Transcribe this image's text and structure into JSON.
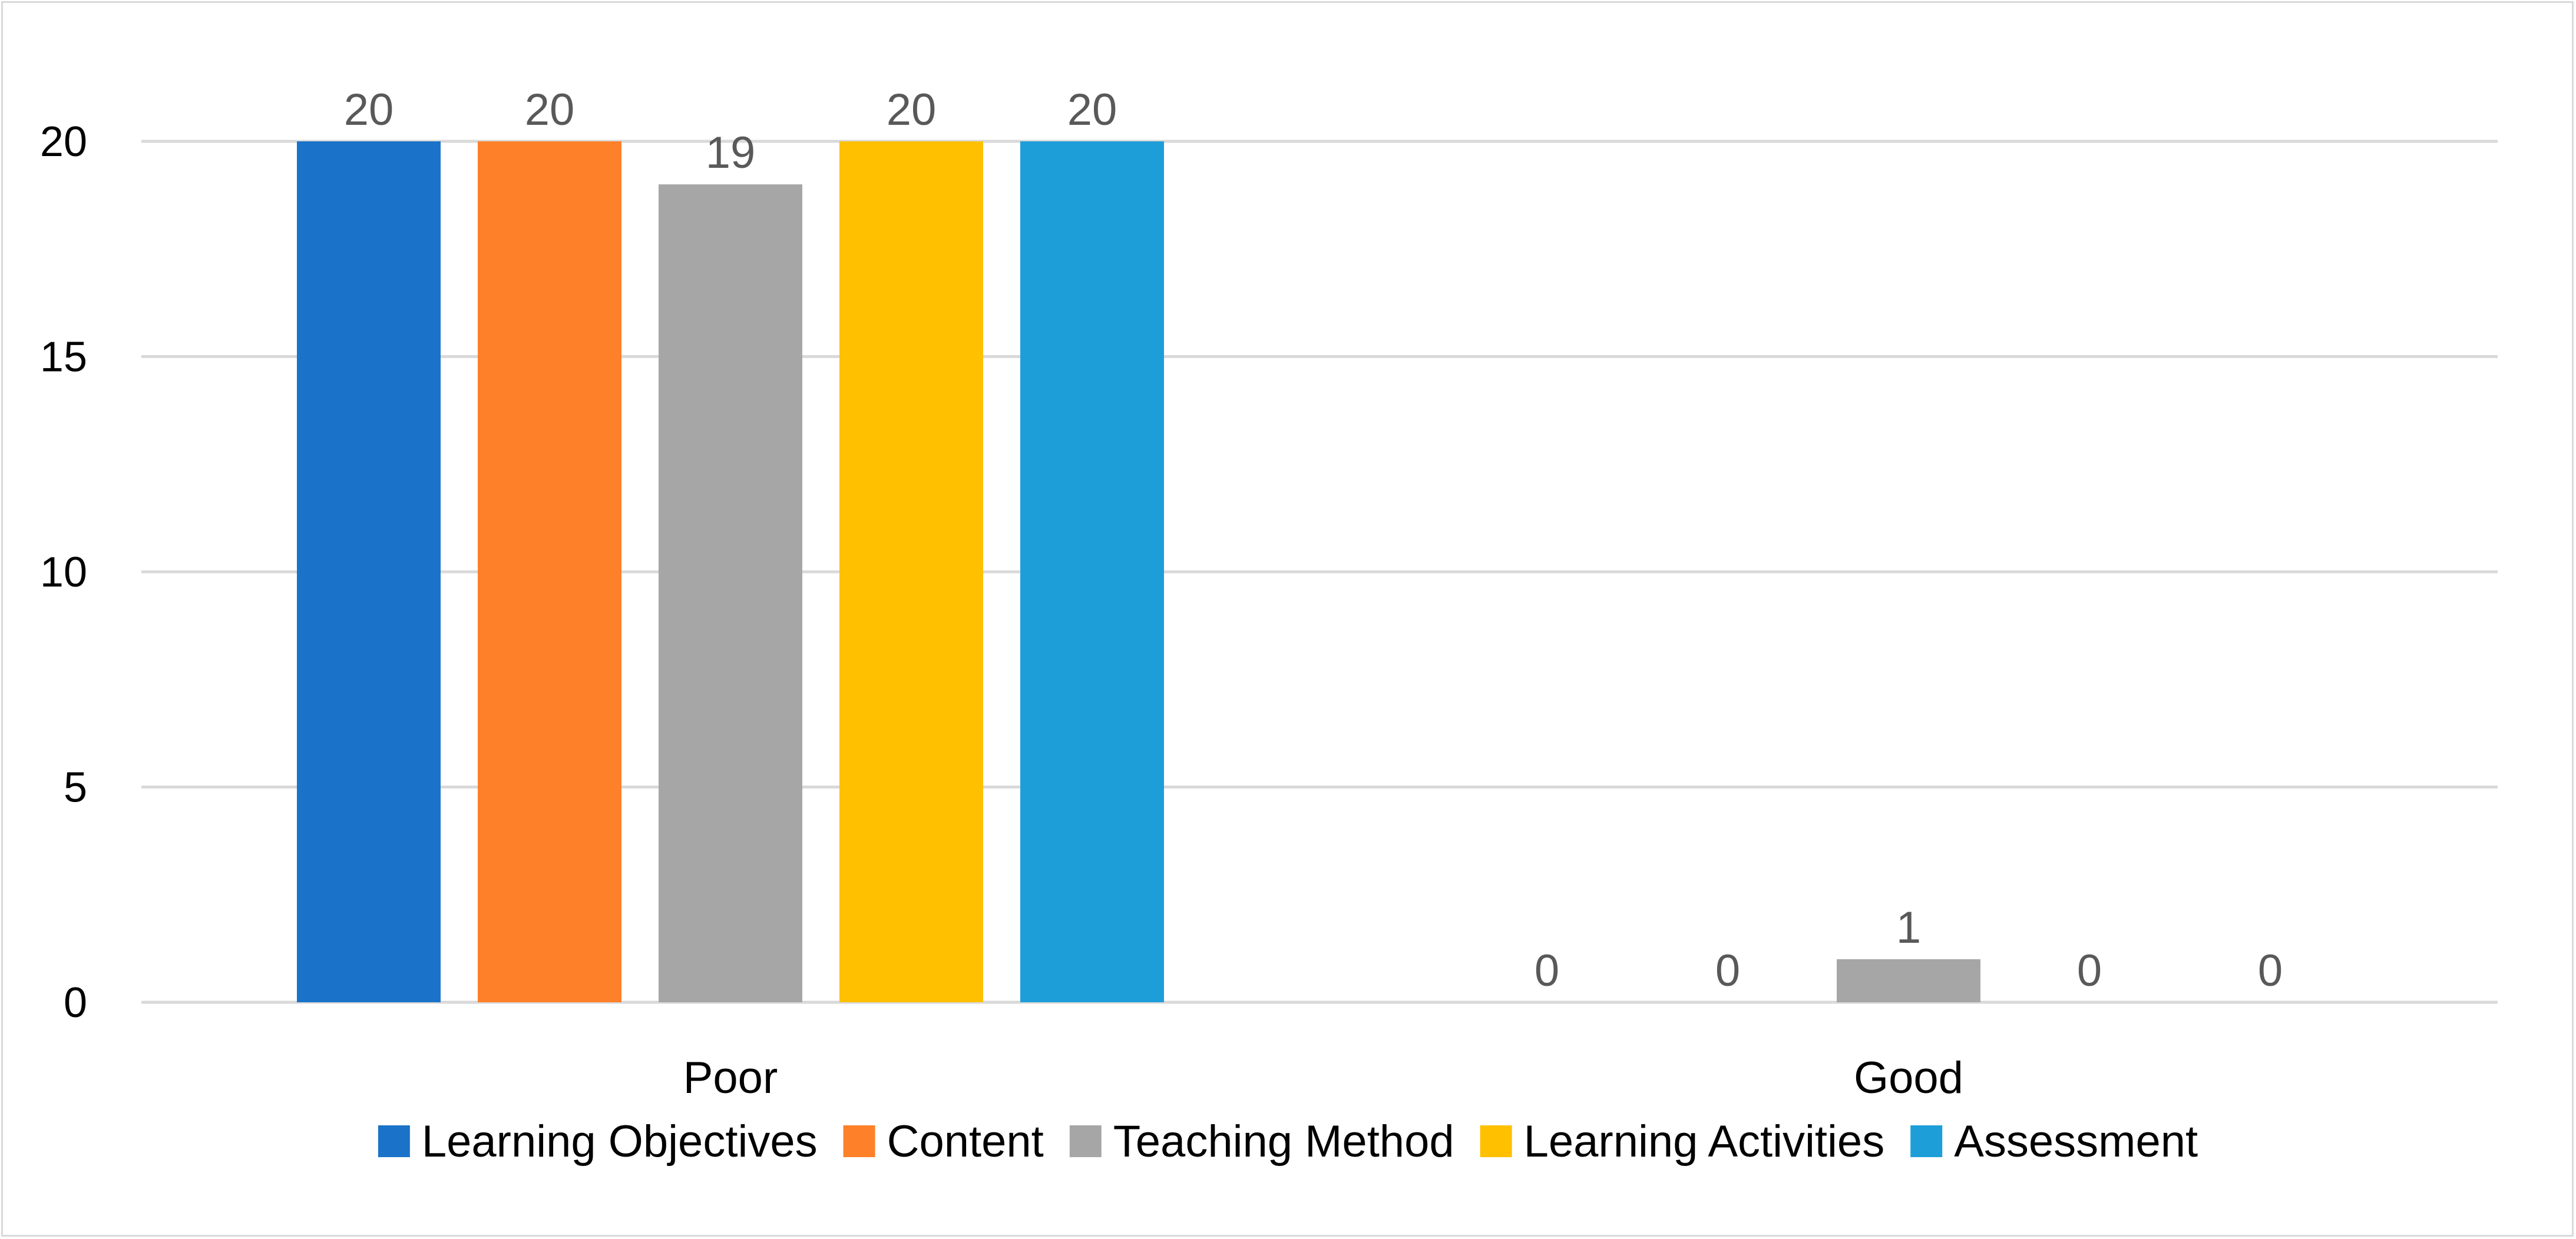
{
  "chart_data": {
    "type": "bar",
    "title": "",
    "xlabel": "",
    "ylabel": "",
    "categories": [
      "Poor",
      "Good"
    ],
    "series": [
      {
        "name": "Learning Objectives",
        "values": [
          20,
          0
        ],
        "color": "#1a73c8"
      },
      {
        "name": "Content",
        "values": [
          20,
          0
        ],
        "color": "#fe8029"
      },
      {
        "name": "Teaching Method",
        "values": [
          19,
          1
        ],
        "color": "#a6a6a6"
      },
      {
        "name": "Learning Activities",
        "values": [
          20,
          0
        ],
        "color": "#ffc000"
      },
      {
        "name": "Assessment",
        "values": [
          20,
          0
        ],
        "color": "#1e9ed9"
      }
    ],
    "ylim": [
      0,
      20
    ],
    "yticks": [
      0,
      5,
      10,
      15,
      20
    ],
    "grid": true,
    "data_labels": true,
    "legend_position": "bottom"
  }
}
